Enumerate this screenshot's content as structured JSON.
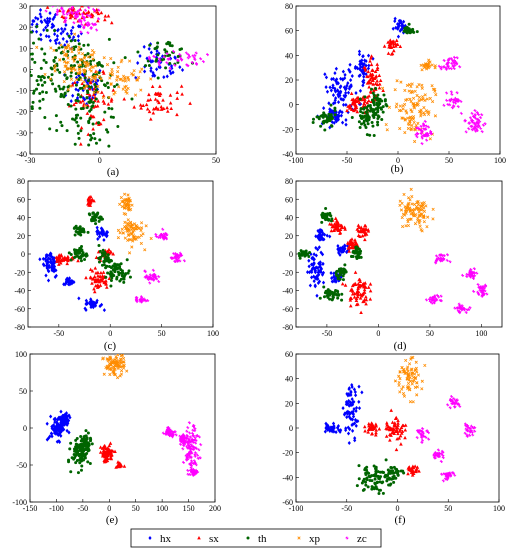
{
  "chart_data": [
    {
      "panel": "(a)",
      "type": "scatter",
      "xlim": [
        -30,
        50
      ],
      "ylim": [
        -40,
        30
      ],
      "xticks": [
        -30,
        0,
        50
      ],
      "yticks": [
        -40,
        -30,
        -20,
        -10,
        0,
        10,
        20,
        30
      ],
      "clusters": {
        "hx": [
          [
            -24,
            22,
            4,
            3
          ],
          [
            -15,
            16,
            4,
            3
          ],
          [
            25,
            2,
            5,
            4
          ],
          [
            -6,
            -8,
            4,
            5
          ]
        ],
        "sx": [
          [
            -12,
            27,
            3,
            2
          ],
          [
            -3,
            26,
            3,
            2
          ],
          [
            25,
            -15,
            5,
            4
          ],
          [
            -3,
            -15,
            5,
            6
          ]
        ],
        "th": [
          [
            -25,
            -5,
            9,
            12
          ],
          [
            -3,
            -20,
            7,
            9
          ],
          [
            28,
            8,
            5,
            3
          ],
          [
            -8,
            0,
            6,
            7
          ]
        ],
        "xp": [
          [
            -5,
            0,
            6,
            6
          ],
          [
            10,
            -5,
            5,
            5
          ],
          [
            -14,
            5,
            5,
            5
          ]
        ],
        "zc": [
          [
            -14,
            27,
            5,
            2
          ],
          [
            33,
            5,
            6,
            2
          ],
          [
            -6,
            22,
            4,
            3
          ]
        ]
      }
    },
    {
      "panel": "(b)",
      "type": "scatter",
      "xlim": [
        -100,
        100
      ],
      "ylim": [
        -40,
        80
      ],
      "xticks": [
        -100,
        -50,
        0,
        50,
        100
      ],
      "yticks": [
        -40,
        -20,
        0,
        20,
        40,
        60,
        80
      ],
      "clusters": {
        "hx": [
          [
            -55,
            10,
            8,
            10
          ],
          [
            -35,
            30,
            4,
            6
          ],
          [
            2,
            63,
            3,
            3
          ],
          [
            -60,
            -10,
            5,
            3
          ]
        ],
        "sx": [
          [
            -25,
            20,
            4,
            8
          ],
          [
            -6,
            48,
            3,
            3
          ],
          [
            -40,
            0,
            5,
            4
          ]
        ],
        "th": [
          [
            -30,
            -10,
            6,
            6
          ],
          [
            -70,
            -12,
            5,
            4
          ],
          [
            10,
            60,
            3,
            2
          ],
          [
            -20,
            0,
            4,
            5
          ]
        ],
        "xp": [
          [
            15,
            -2,
            10,
            12
          ],
          [
            28,
            32,
            3,
            2
          ]
        ],
        "zc": [
          [
            50,
            32,
            4,
            3
          ],
          [
            75,
            -15,
            5,
            5
          ],
          [
            55,
            4,
            3,
            3
          ],
          [
            25,
            -22,
            4,
            4
          ]
        ]
      }
    },
    {
      "panel": "(c)",
      "type": "scatter",
      "xlim": [
        -80,
        100
      ],
      "ylim": [
        -80,
        80
      ],
      "xticks": [
        -50,
        0,
        50,
        100
      ],
      "yticks": [
        -80,
        -60,
        -40,
        -20,
        0,
        20,
        40,
        60,
        80
      ],
      "clusters": {
        "hx": [
          [
            -58,
            -10,
            4,
            8
          ],
          [
            -7,
            23,
            3,
            3
          ],
          [
            -17,
            -55,
            4,
            3
          ],
          [
            -40,
            -30,
            3,
            2
          ]
        ],
        "sx": [
          [
            -45,
            -5,
            5,
            3
          ],
          [
            -12,
            -28,
            5,
            5
          ],
          [
            -20,
            58,
            2,
            3
          ],
          [
            -5,
            0,
            3,
            3
          ]
        ],
        "th": [
          [
            7,
            -20,
            6,
            5
          ],
          [
            -30,
            0,
            4,
            4
          ],
          [
            -15,
            40,
            3,
            3
          ],
          [
            -5,
            -5,
            3,
            4
          ],
          [
            -30,
            25,
            3,
            3
          ]
        ],
        "xp": [
          [
            20,
            25,
            6,
            8
          ],
          [
            16,
            55,
            3,
            5
          ]
        ],
        "zc": [
          [
            50,
            20,
            3,
            2
          ],
          [
            65,
            -5,
            3,
            3
          ],
          [
            40,
            -25,
            3,
            3
          ],
          [
            30,
            -50,
            3,
            2
          ]
        ]
      }
    },
    {
      "panel": "(d)",
      "type": "scatter",
      "xlim": [
        -80,
        120
      ],
      "ylim": [
        -80,
        80
      ],
      "xticks": [
        -50,
        0,
        50,
        100
      ],
      "yticks": [
        -80,
        -60,
        -40,
        -20,
        0,
        20,
        40,
        60,
        80
      ],
      "clusters": {
        "hx": [
          [
            -60,
            -15,
            4,
            10
          ],
          [
            -55,
            20,
            3,
            3
          ],
          [
            -40,
            -25,
            3,
            3
          ],
          [
            -35,
            5,
            3,
            3
          ]
        ],
        "sx": [
          [
            -20,
            -40,
            5,
            8
          ],
          [
            -40,
            30,
            3,
            5
          ],
          [
            -25,
            10,
            3,
            3
          ],
          [
            -15,
            25,
            3,
            3
          ]
        ],
        "th": [
          [
            -45,
            -45,
            4,
            4
          ],
          [
            -72,
            0,
            3,
            2
          ],
          [
            -35,
            -20,
            3,
            3
          ],
          [
            -20,
            0,
            3,
            3
          ],
          [
            -50,
            40,
            3,
            3
          ]
        ],
        "xp": [
          [
            35,
            45,
            8,
            10
          ]
        ],
        "zc": [
          [
            100,
            -40,
            3,
            3
          ],
          [
            90,
            -20,
            3,
            3
          ],
          [
            80,
            -60,
            3,
            2
          ],
          [
            60,
            -5,
            3,
            2
          ],
          [
            55,
            -50,
            3,
            2
          ]
        ]
      }
    },
    {
      "panel": "(e)",
      "type": "scatter",
      "xlim": [
        -150,
        200
      ],
      "ylim": [
        -100,
        100
      ],
      "xticks": [
        -150,
        -100,
        -50,
        0,
        50,
        100,
        150,
        200
      ],
      "yticks": [
        -100,
        -50,
        0,
        50,
        100
      ],
      "clusters": {
        "hx": [
          [
            -98,
            0,
            8,
            8
          ],
          [
            -85,
            10,
            5,
            5
          ]
        ],
        "sx": [
          [
            -5,
            -35,
            7,
            6
          ],
          [
            20,
            -50,
            2,
            2
          ]
        ],
        "th": [
          [
            -55,
            -35,
            8,
            9
          ],
          [
            -45,
            -20,
            5,
            6
          ]
        ],
        "xp": [
          [
            10,
            85,
            10,
            7
          ]
        ],
        "zc": [
          [
            155,
            -30,
            7,
            15
          ],
          [
            115,
            -5,
            5,
            3
          ],
          [
            160,
            -60,
            3,
            2
          ],
          [
            140,
            -15,
            4,
            3
          ]
        ]
      }
    },
    {
      "panel": "(f)",
      "type": "scatter",
      "xlim": [
        -100,
        100
      ],
      "ylim": [
        -60,
        60
      ],
      "xticks": [
        -100,
        -50,
        0,
        50,
        100
      ],
      "yticks": [
        -60,
        -40,
        -20,
        0,
        20,
        40,
        60
      ],
      "clusters": {
        "hx": [
          [
            -45,
            15,
            4,
            10
          ],
          [
            -65,
            0,
            4,
            2
          ]
        ],
        "sx": [
          [
            -2,
            0,
            5,
            6
          ],
          [
            15,
            -35,
            3,
            2
          ],
          [
            -25,
            0,
            3,
            3
          ]
        ],
        "th": [
          [
            -25,
            -40,
            7,
            6
          ],
          [
            -5,
            -38,
            5,
            4
          ]
        ],
        "xp": [
          [
            10,
            40,
            7,
            8
          ]
        ],
        "zc": [
          [
            55,
            20,
            3,
            2
          ],
          [
            70,
            -2,
            3,
            2
          ],
          [
            40,
            -22,
            3,
            2
          ],
          [
            50,
            -38,
            3,
            2
          ],
          [
            25,
            -5,
            3,
            2
          ]
        ]
      }
    }
  ],
  "series": [
    {
      "name": "hx",
      "color": "#0000ff",
      "marker": "diamond"
    },
    {
      "name": "sx",
      "color": "#ff0000",
      "marker": "triangle"
    },
    {
      "name": "th",
      "color": "#006400",
      "marker": "circle"
    },
    {
      "name": "xp",
      "color": "#ff8c00",
      "marker": "x"
    },
    {
      "name": "zc",
      "color": "#ff00ff",
      "marker": "star"
    }
  ],
  "panel_labels": [
    "(a)",
    "(b)",
    "(c)",
    "(d)",
    "(e)",
    "(f)"
  ],
  "legend": {
    "placement": "bottom-center",
    "labels": [
      "hx",
      "sx",
      "th",
      "xp",
      "zc"
    ]
  }
}
